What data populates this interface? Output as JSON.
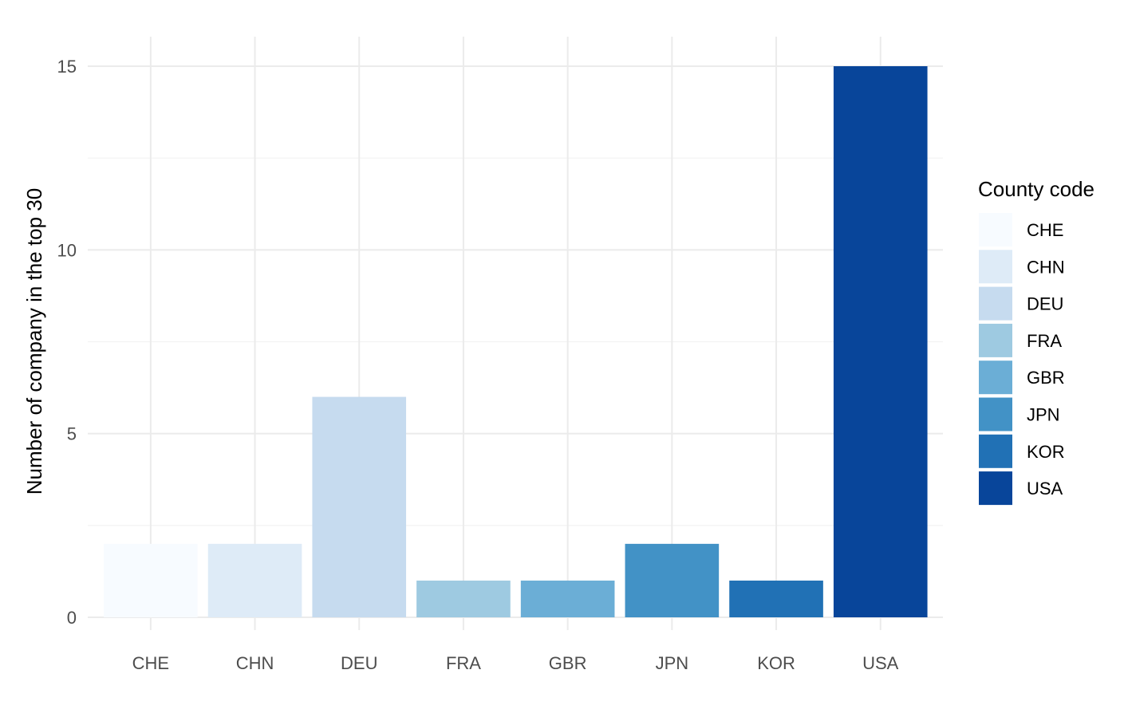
{
  "chart_data": {
    "type": "bar",
    "title": "",
    "xlabel": "",
    "ylabel": "Number of company in the top 30",
    "categories": [
      "CHE",
      "CHN",
      "DEU",
      "FRA",
      "GBR",
      "JPN",
      "KOR",
      "USA"
    ],
    "values": [
      2,
      2,
      6,
      1,
      1,
      2,
      1,
      15
    ],
    "colors": [
      "#F7FBFF",
      "#DEEBF7",
      "#C6DBEF",
      "#9ECAE1",
      "#6BAED6",
      "#4292C6",
      "#2171B5",
      "#08459A"
    ],
    "ylim": [
      0,
      15.8
    ],
    "yticks": [
      0,
      5,
      10,
      15
    ],
    "ytick_labels": [
      "0",
      "5",
      "10",
      "15"
    ],
    "grid": true,
    "legend": {
      "title": "County code",
      "position": "right",
      "entries": [
        "CHE",
        "CHN",
        "DEU",
        "FRA",
        "GBR",
        "JPN",
        "KOR",
        "USA"
      ]
    }
  }
}
